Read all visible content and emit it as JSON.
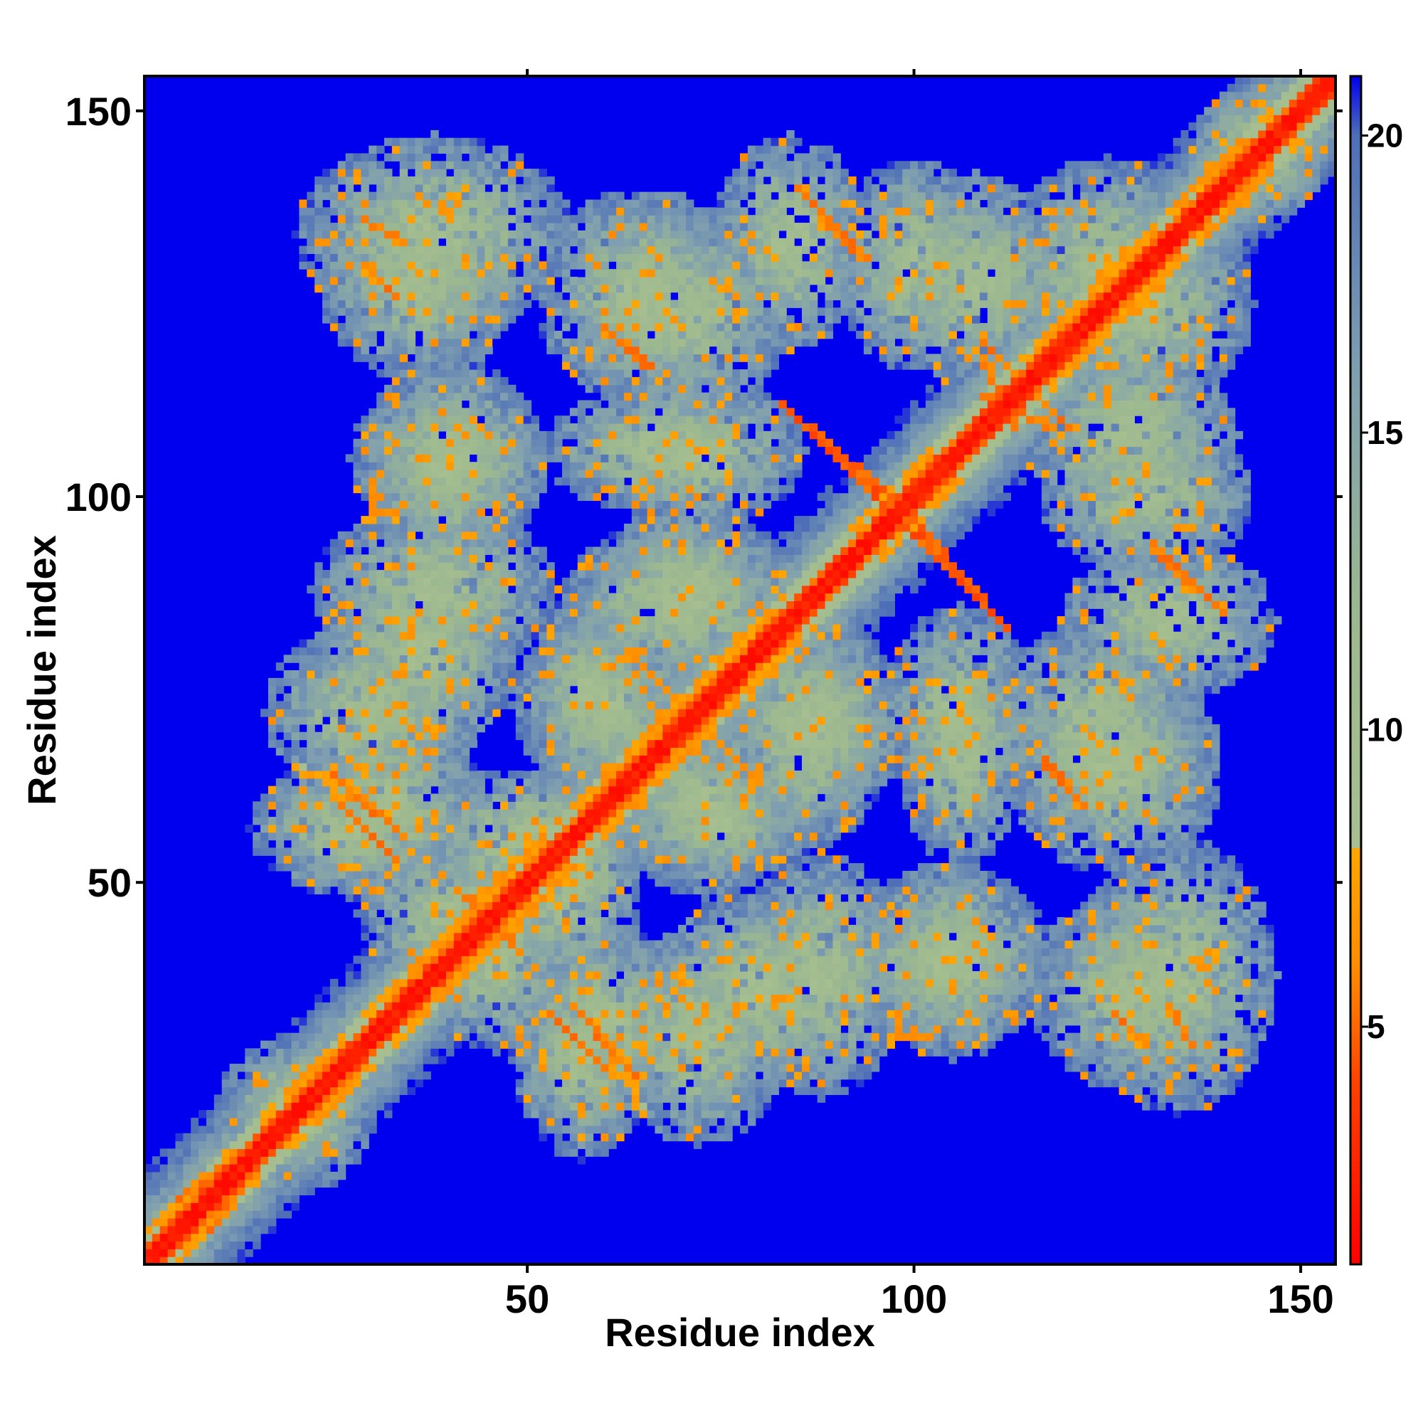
{
  "chart_data": {
    "type": "heatmap",
    "title": "",
    "xlabel": "Residue index",
    "ylabel": "Residue index",
    "x_range": [
      1,
      154
    ],
    "y_range": [
      1,
      154
    ],
    "x_ticks": [
      50,
      100,
      150
    ],
    "y_ticks": [
      50,
      100,
      150
    ],
    "colorbar": {
      "range": [
        1,
        21
      ],
      "ticks": [
        5,
        10,
        15,
        20
      ],
      "cutoff": 8,
      "stops": [
        {
          "value": 1,
          "color": "#ff0000"
        },
        {
          "value": 4,
          "color": "#ff4000"
        },
        {
          "value": 6,
          "color": "#ff8c00"
        },
        {
          "value": 8,
          "color": "#ffa500"
        },
        {
          "value": 8.01,
          "color": "#a8c090"
        },
        {
          "value": 12,
          "color": "#9cb890"
        },
        {
          "value": 16,
          "color": "#7f9fb0"
        },
        {
          "value": 20,
          "color": "#4e6fb8"
        },
        {
          "value": 21,
          "color": "#0000ee"
        }
      ]
    },
    "background_value": 21,
    "background_color": "#0000ee",
    "diagonal": {
      "value": 1.5,
      "helix_segments": [
        [
          3,
          12
        ],
        [
          19,
          28
        ],
        [
          33,
          52
        ],
        [
          60,
          82
        ],
        [
          96,
          104
        ],
        [
          118,
          146
        ]
      ]
    },
    "contact_segments": [
      {
        "from": [
          5,
          9
        ],
        "to": [
          12,
          14
        ],
        "min": 5
      },
      {
        "from": [
          20,
          22
        ],
        "to": [
          24,
          26
        ],
        "min": 5
      },
      {
        "from": [
          11,
          12
        ],
        "to": [
          14,
          12
        ],
        "min": 5
      },
      {
        "from": [
          53,
          33
        ],
        "to": [
          60,
          26
        ],
        "min": 5
      },
      {
        "from": [
          25,
          64
        ],
        "to": [
          34,
          56
        ],
        "min": 5
      },
      {
        "from": [
          20,
          65
        ],
        "to": [
          28,
          62
        ],
        "min": 7
      },
      {
        "from": [
          43,
          48
        ],
        "to": [
          49,
          41
        ],
        "min": 5
      },
      {
        "from": [
          35,
          41
        ],
        "to": [
          37,
          39
        ],
        "min": 6
      },
      {
        "from": [
          86,
          139
        ],
        "to": [
          94,
          131
        ],
        "min": 5
      },
      {
        "from": [
          60,
          122
        ],
        "to": [
          66,
          117
        ],
        "min": 5
      },
      {
        "from": [
          83,
          112
        ],
        "to": [
          99,
          98
        ],
        "min": 4
      },
      {
        "from": [
          98,
          97
        ],
        "to": [
          112,
          83
        ],
        "min": 4
      },
      {
        "from": [
          131,
          93
        ],
        "to": [
          140,
          85
        ],
        "min": 5
      },
      {
        "from": [
          109,
          118
        ],
        "to": [
          113,
          109
        ],
        "min": 5
      },
      {
        "from": [
          116,
          113
        ],
        "to": [
          120,
          109
        ],
        "min": 5
      },
      {
        "from": [
          117,
          65
        ],
        "to": [
          121,
          61
        ],
        "min": 5
      },
      {
        "from": [
          133,
          34
        ],
        "to": [
          136,
          29
        ],
        "min": 5
      },
      {
        "from": [
          29,
          130
        ],
        "to": [
          33,
          126
        ],
        "min": 5
      },
      {
        "from": [
          63,
          80
        ],
        "to": [
          80,
          63
        ],
        "min": 6
      },
      {
        "from": [
          80,
          86
        ],
        "to": [
          86,
          80
        ],
        "min": 6
      }
    ],
    "blob_regions": [
      {
        "cx": 38,
        "cy": 134,
        "rx": 18,
        "ry": 13
      },
      {
        "cx": 65,
        "cy": 126,
        "rx": 14,
        "ry": 14
      },
      {
        "cx": 84,
        "cy": 133,
        "rx": 10,
        "ry": 14
      },
      {
        "cx": 108,
        "cy": 128,
        "rx": 12,
        "ry": 14
      },
      {
        "cx": 130,
        "cy": 125,
        "rx": 14,
        "ry": 14
      },
      {
        "cx": 40,
        "cy": 105,
        "rx": 13,
        "ry": 11
      },
      {
        "cx": 66,
        "cy": 106,
        "rx": 14,
        "ry": 8
      },
      {
        "cx": 130,
        "cy": 100,
        "rx": 14,
        "ry": 10
      },
      {
        "cx": 38,
        "cy": 88,
        "rx": 16,
        "ry": 11
      },
      {
        "cx": 71,
        "cy": 88,
        "rx": 13,
        "ry": 11
      },
      {
        "cx": 30,
        "cy": 72,
        "rx": 14,
        "ry": 12
      },
      {
        "cx": 60,
        "cy": 73,
        "rx": 12,
        "ry": 12
      },
      {
        "cx": 86,
        "cy": 70,
        "rx": 11,
        "ry": 16
      },
      {
        "cx": 106,
        "cy": 72,
        "rx": 10,
        "ry": 14
      },
      {
        "cx": 124,
        "cy": 70,
        "rx": 14,
        "ry": 14
      },
      {
        "cx": 27,
        "cy": 57,
        "rx": 13,
        "ry": 9
      },
      {
        "cx": 50,
        "cy": 55,
        "rx": 16,
        "ry": 10
      },
      {
        "cx": 75,
        "cy": 58,
        "rx": 12,
        "ry": 8
      },
      {
        "cx": 40,
        "cy": 46,
        "rx": 12,
        "ry": 10
      },
      {
        "cx": 60,
        "cy": 32,
        "rx": 13,
        "ry": 12
      },
      {
        "cx": 80,
        "cy": 36,
        "rx": 14,
        "ry": 13
      },
      {
        "cx": 104,
        "cy": 40,
        "rx": 14,
        "ry": 12
      },
      {
        "cx": 128,
        "cy": 36,
        "rx": 13,
        "ry": 13
      },
      {
        "cx": 20,
        "cy": 22,
        "rx": 10,
        "ry": 8
      },
      {
        "cx": 145,
        "cy": 145,
        "rx": 9,
        "ry": 9
      }
    ]
  }
}
